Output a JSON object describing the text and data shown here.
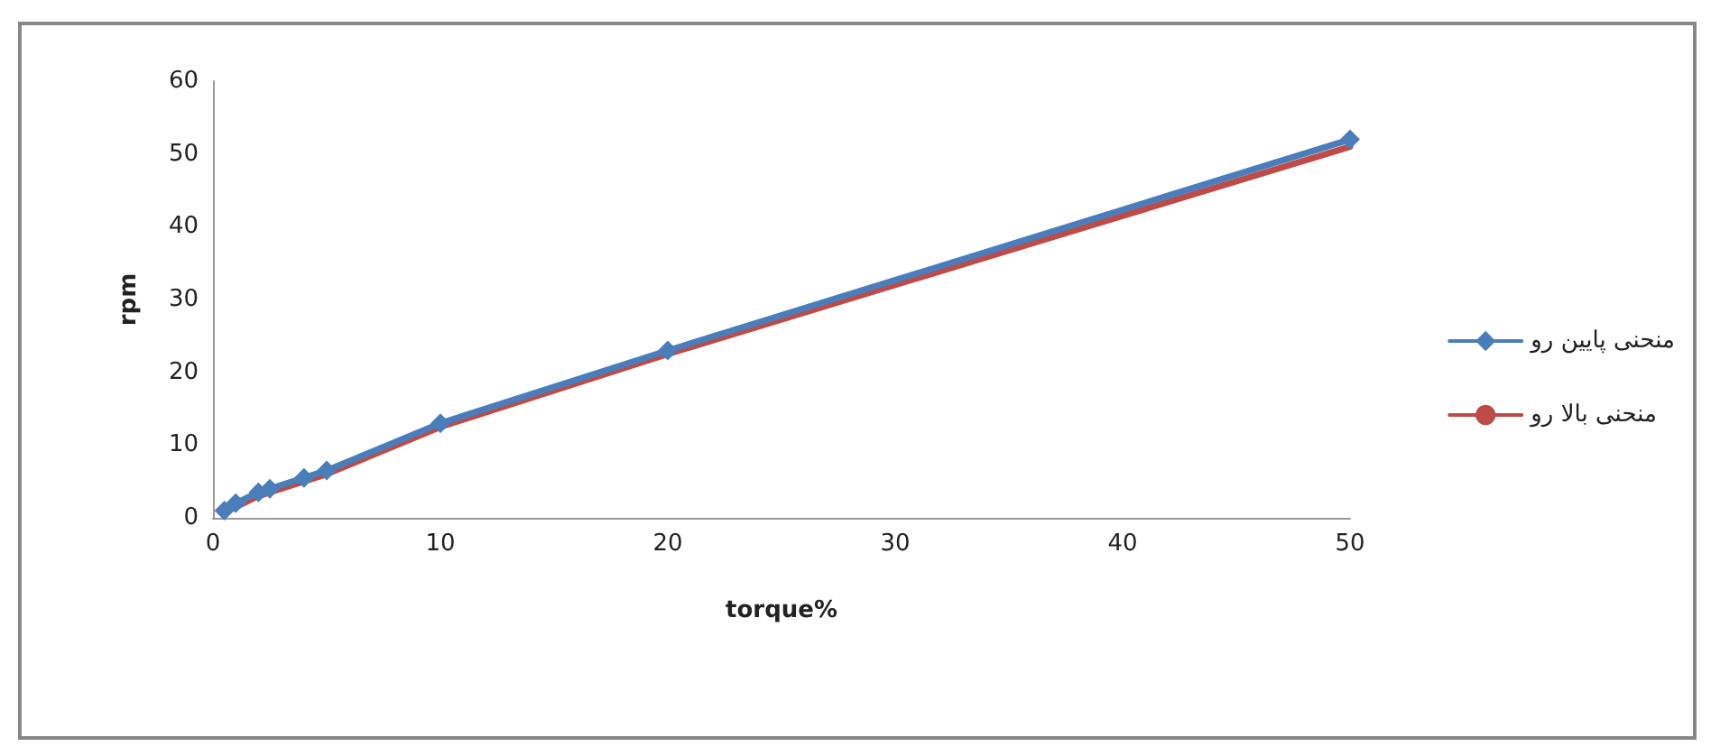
{
  "chart_data": {
    "type": "line",
    "xlabel": "torque%",
    "ylabel": "rpm",
    "x": [
      0.5,
      1,
      2,
      2.5,
      4,
      5,
      10,
      20,
      50
    ],
    "series": [
      {
        "name": "منحنی پایین رو",
        "color": "#4a7ebb",
        "marker": "diamond",
        "values": [
          1,
          2,
          3.5,
          4,
          5.5,
          6.5,
          13,
          23,
          52
        ]
      },
      {
        "name": "منحنی بالا رو",
        "color": "#be4b48",
        "marker": "none",
        "values": [
          0.7,
          1.5,
          3,
          3.5,
          5,
          6,
          12.5,
          22.5,
          51
        ]
      }
    ],
    "xlim": [
      0,
      50
    ],
    "xticks": [
      0,
      10,
      20,
      30,
      40,
      50
    ],
    "ylim": [
      0,
      60
    ],
    "yticks": [
      0,
      10,
      20,
      30,
      40,
      50,
      60
    ],
    "grid": false,
    "legend": "right",
    "line_style": "solid"
  }
}
